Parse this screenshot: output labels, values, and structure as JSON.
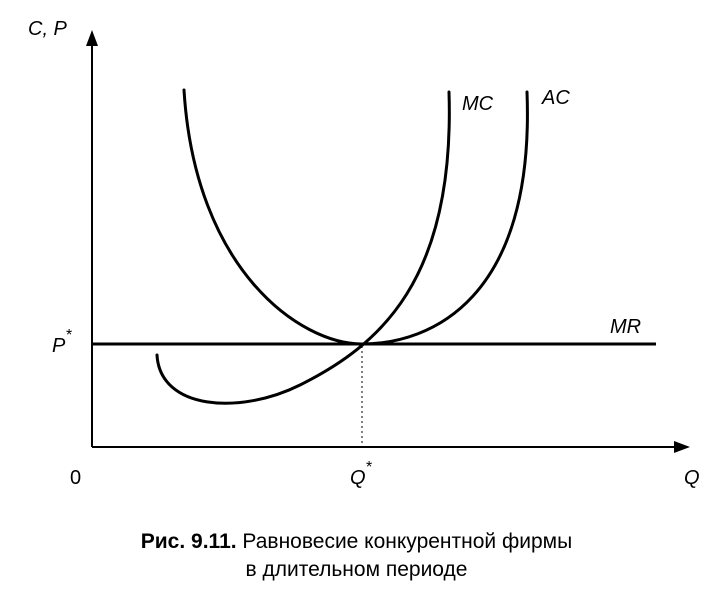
{
  "axes": {
    "y_label": "C, P",
    "x_label": "Q",
    "origin_label": "0",
    "p_star_label": "P",
    "q_star_label": "Q",
    "star": "*"
  },
  "curves": {
    "mc_label": "MC",
    "ac_label": "AC",
    "mr_label": "MR"
  },
  "caption": {
    "number": "Рис. 9.11.",
    "line1": "Равновесие конкурентной фирмы",
    "line2": "в длительном периоде"
  }
}
